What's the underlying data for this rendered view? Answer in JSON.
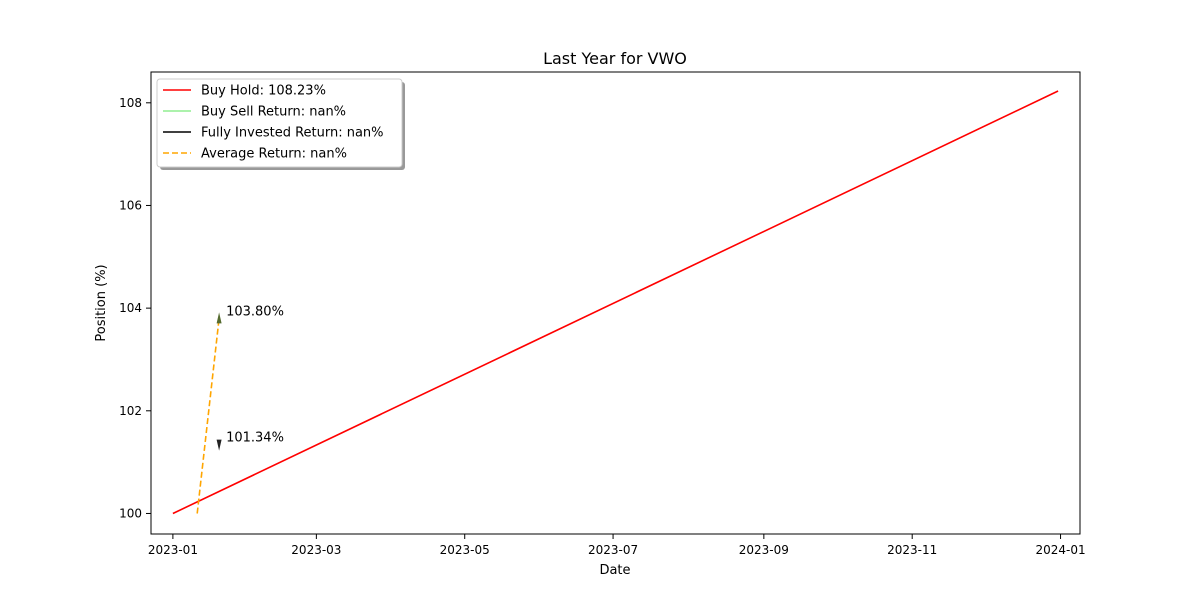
{
  "chart_data": {
    "type": "line",
    "title": "Last Year for VWO",
    "xlabel": "Date",
    "ylabel": "Position (%)",
    "x_ticks": [
      "2023-01",
      "2023-03",
      "2023-05",
      "2023-07",
      "2023-09",
      "2023-11",
      "2024-01"
    ],
    "y_ticks": [
      "100",
      "102",
      "104",
      "106",
      "108"
    ],
    "xlim": [
      "2022-12-23",
      "2024-01-09"
    ],
    "ylim": [
      99.6,
      108.6
    ],
    "grid": false,
    "legend_position": "top-left",
    "legend": [
      {
        "label": "Buy Hold: 108.23%",
        "color": "#ff0000",
        "dash": "solid"
      },
      {
        "label": "Buy Sell Return: nan%",
        "color": "#90ee90",
        "dash": "solid"
      },
      {
        "label": "Fully Invested Return: nan%",
        "color": "#000000",
        "dash": "solid"
      },
      {
        "label": "Average Return: nan%",
        "color": "#ffa500",
        "dash": "dashed"
      }
    ],
    "series": [
      {
        "name": "Buy Hold: 108.23%",
        "color": "#ff0000",
        "dash": "solid",
        "points": [
          {
            "x": "2023-01-01",
            "y": 100.0
          },
          {
            "x": "2023-12-31",
            "y": 108.23
          }
        ]
      },
      {
        "name": "Average Return: nan%",
        "color": "#ffa500",
        "dash": "dashed",
        "points": [
          {
            "x": "2023-01-11",
            "y": 100.0
          },
          {
            "x": "2023-01-20",
            "y": 103.8
          }
        ]
      }
    ],
    "annotations": [
      {
        "text": "103.80%",
        "x": "2023-01-20",
        "y": 103.8,
        "marker": "up",
        "marker_color": "#556b2f"
      },
      {
        "text": "101.34%",
        "x": "2023-01-20",
        "y": 101.34,
        "marker": "down",
        "marker_color": "#222222"
      }
    ]
  }
}
